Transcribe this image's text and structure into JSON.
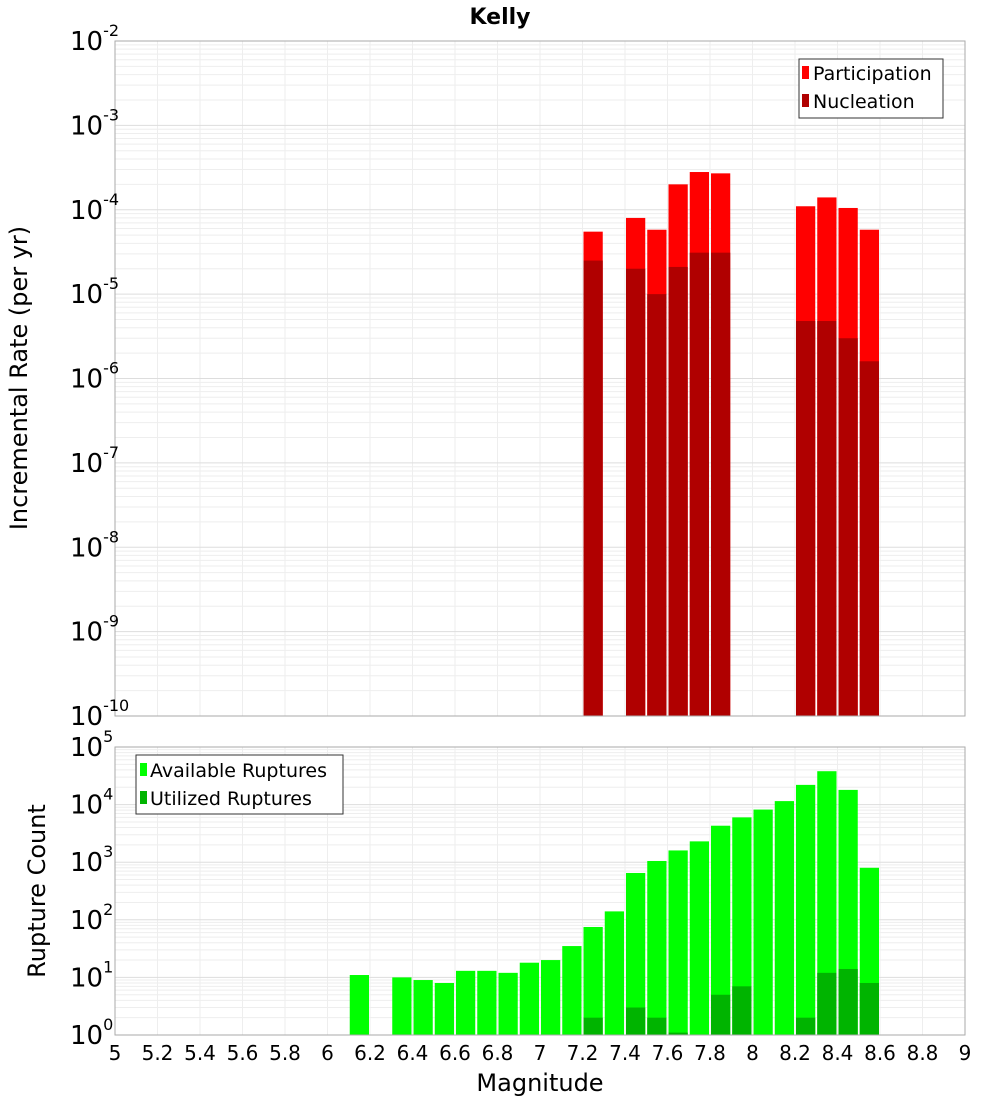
{
  "title": "Kelly",
  "chart_data": [
    {
      "type": "bar",
      "ylabel": "Incremental Rate (per yr)",
      "xlabel": "",
      "yscale": "log",
      "ylim": [
        1e-10,
        0.01
      ],
      "xlim": [
        5,
        9
      ],
      "grid": true,
      "legend_position": "top-right",
      "legend": [
        "Participation",
        "Nucleation"
      ],
      "bin_width": 0.1,
      "colors": {
        "Participation": "#ff0000",
        "Nucleation": "#b00000"
      },
      "x": [
        7.25,
        7.45,
        7.55,
        7.65,
        7.75,
        7.85,
        8.25,
        8.35,
        8.45,
        8.55
      ],
      "series": [
        {
          "name": "Participation",
          "values": [
            5.5e-05,
            8e-05,
            5.8e-05,
            0.0002,
            0.00028,
            0.00027,
            0.00011,
            0.00014,
            0.000105,
            5.8e-05
          ]
        },
        {
          "name": "Nucleation",
          "values": [
            2.5e-05,
            2e-05,
            1e-05,
            2.1e-05,
            3.1e-05,
            3.1e-05,
            4.8e-06,
            4.8e-06,
            3e-06,
            1.6e-06
          ]
        }
      ]
    },
    {
      "type": "bar",
      "ylabel": "Rupture Count",
      "xlabel": "Magnitude",
      "yscale": "log",
      "ylim": [
        1,
        100000.0
      ],
      "xlim": [
        5,
        9
      ],
      "grid": true,
      "legend_position": "top-left",
      "legend": [
        "Available Ruptures",
        "Utilized Ruptures"
      ],
      "bin_width": 0.1,
      "colors": {
        "Available Ruptures": "#00ff00",
        "Utilized Ruptures": "#00b400"
      },
      "x": [
        6.15,
        6.35,
        6.45,
        6.55,
        6.65,
        6.75,
        6.85,
        6.95,
        7.05,
        7.15,
        7.25,
        7.35,
        7.45,
        7.55,
        7.65,
        7.75,
        7.85,
        7.95,
        8.05,
        8.15,
        8.25,
        8.35,
        8.45,
        8.55
      ],
      "series": [
        {
          "name": "Available Ruptures",
          "values": [
            11,
            10,
            9,
            8,
            13,
            13,
            12,
            18,
            20,
            35,
            75,
            140,
            650,
            1050,
            1600,
            2300,
            4300,
            6000,
            8200,
            11500,
            22000,
            38000,
            18000,
            800
          ]
        },
        {
          "name": "Utilized Ruptures",
          "values": [
            0,
            0,
            0,
            0,
            0,
            0,
            0,
            0,
            0,
            0,
            2,
            0,
            3,
            2,
            1.1,
            0,
            5,
            7,
            0,
            0,
            2,
            12,
            14,
            8
          ]
        }
      ]
    }
  ],
  "x_ticks": [
    "5",
    "5.2",
    "5.4",
    "5.6",
    "5.8",
    "6",
    "6.2",
    "6.4",
    "6.6",
    "6.8",
    "7",
    "7.2",
    "7.4",
    "7.6",
    "7.8",
    "8",
    "8.2",
    "8.4",
    "8.6",
    "8.8",
    "9"
  ],
  "top_y_exponents": [
    "-10",
    "-9",
    "-8",
    "-7",
    "-6",
    "-5",
    "-4",
    "-3",
    "-2"
  ],
  "bottom_y_exponents": [
    "0",
    "1",
    "2",
    "3",
    "4",
    "5"
  ],
  "y_tick_base": "10"
}
